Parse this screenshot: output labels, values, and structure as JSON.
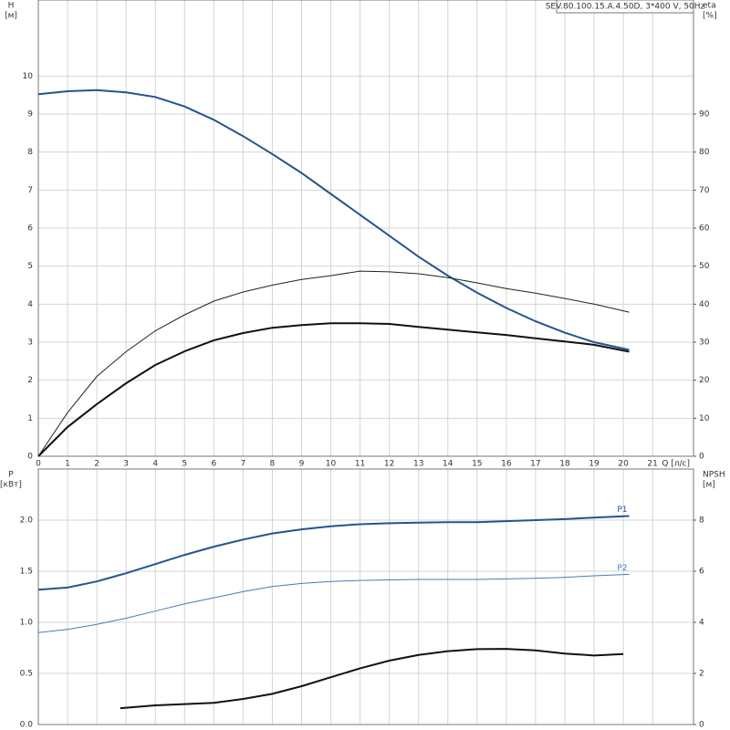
{
  "chart_data": [
    {
      "type": "line",
      "title": "SEV.80.100.15.A.4.50D, 3*400 V, 50Hz",
      "y_label": "H",
      "y_unit": "[м]",
      "y2_label": "eta",
      "y2_unit": "[%]",
      "x_label": "Q [л/с]",
      "xlim": [
        0,
        22.4
      ],
      "xticks": [
        0,
        1,
        2,
        3,
        4,
        5,
        6,
        7,
        8,
        9,
        10,
        11,
        12,
        13,
        14,
        15,
        16,
        17,
        18,
        19,
        20,
        21
      ],
      "show_xtick_labels": true,
      "ylim": [
        0,
        12
      ],
      "yticks": [
        0,
        1,
        2,
        3,
        4,
        5,
        6,
        7,
        8,
        9,
        10
      ],
      "y2lim": [
        0,
        120
      ],
      "y2ticks": [
        0,
        10,
        20,
        30,
        40,
        50,
        60,
        70,
        80,
        90
      ],
      "grid": true,
      "series": [
        {
          "color": "#24548f",
          "width": 2,
          "x": [
            0,
            1,
            2,
            3,
            4,
            5,
            6,
            7,
            8,
            9,
            10,
            11,
            12,
            13,
            14,
            15,
            16,
            17,
            18,
            19,
            20.2
          ],
          "values": [
            9.52,
            9.6,
            9.63,
            9.57,
            9.45,
            9.2,
            8.85,
            8.42,
            7.95,
            7.45,
            6.9,
            6.35,
            5.8,
            5.25,
            4.75,
            4.3,
            3.9,
            3.55,
            3.25,
            3.0,
            2.8
          ]
        },
        {
          "color": "#222222",
          "width": 1,
          "axis": "y2",
          "x": [
            0,
            1,
            2,
            3,
            4,
            5,
            6,
            7,
            8,
            9,
            10,
            11,
            12,
            13,
            14,
            15,
            16,
            17,
            18,
            19,
            20.2
          ],
          "values": [
            0,
            11.5,
            21,
            27.5,
            33,
            37.2,
            40.8,
            43.2,
            45,
            46.5,
            47.5,
            48.7,
            48.5,
            48,
            47,
            45.6,
            44.1,
            42.9,
            41.5,
            40,
            37.9
          ]
        },
        {
          "color": "#111111",
          "width": 2,
          "axis": "y2",
          "x": [
            0,
            1,
            2,
            3,
            4,
            5,
            6,
            7,
            8,
            9,
            10,
            11,
            12,
            13,
            14,
            15,
            16,
            17,
            18,
            19,
            20.2
          ],
          "values": [
            0,
            7.7,
            13.7,
            19.2,
            24,
            27.6,
            30.5,
            32.4,
            33.8,
            34.5,
            35,
            35,
            34.8,
            34,
            33.3,
            32.6,
            31.9,
            31,
            30.2,
            29.3,
            27.5
          ]
        }
      ]
    },
    {
      "type": "line",
      "y_label": "P",
      "y_unit": "[кВт]",
      "y2_label": "NPSH",
      "y2_unit": "[м]",
      "xlim": [
        0,
        22.4
      ],
      "xticks": [
        0,
        1,
        2,
        3,
        4,
        5,
        6,
        7,
        8,
        9,
        10,
        11,
        12,
        13,
        14,
        15,
        16,
        17,
        18,
        19,
        20,
        21
      ],
      "show_xtick_labels": false,
      "ylim": [
        0,
        2.5
      ],
      "yticks": [
        {
          "value": 0,
          "label": "0.0"
        },
        0.5,
        {
          "value": 1,
          "label": "1.0"
        },
        1.5,
        {
          "value": 2,
          "label": "2.0"
        }
      ],
      "y2lim": [
        0,
        10
      ],
      "y2ticks": [
        0,
        2,
        4,
        6,
        8
      ],
      "grid": true,
      "series": [
        {
          "name": "P1",
          "color": "#24548f",
          "width": 2,
          "x": [
            0,
            1,
            2,
            3,
            4,
            5,
            6,
            7,
            8,
            9,
            10,
            11,
            12,
            13,
            14,
            15,
            16,
            17,
            18,
            19,
            20.2
          ],
          "values": [
            1.32,
            1.34,
            1.4,
            1.48,
            1.57,
            1.66,
            1.74,
            1.81,
            1.87,
            1.91,
            1.94,
            1.96,
            1.97,
            1.975,
            1.98,
            1.98,
            1.99,
            2.0,
            2.01,
            2.025,
            2.04
          ]
        },
        {
          "name": "P2",
          "color": "#4a7ab3",
          "width": 1,
          "x": [
            0,
            1,
            2,
            3,
            4,
            5,
            6,
            7,
            8,
            9,
            10,
            11,
            12,
            13,
            14,
            15,
            16,
            17,
            18,
            19,
            20.2
          ],
          "values": [
            0.9,
            0.93,
            0.98,
            1.04,
            1.11,
            1.18,
            1.24,
            1.3,
            1.35,
            1.38,
            1.4,
            1.41,
            1.415,
            1.42,
            1.42,
            1.42,
            1.425,
            1.43,
            1.44,
            1.455,
            1.47
          ]
        },
        {
          "color": "#111111",
          "width": 2,
          "axis": "y2",
          "x": [
            2.8,
            4,
            5,
            6,
            7,
            8,
            9,
            10,
            11,
            12,
            13,
            14,
            15,
            16,
            17,
            18,
            19,
            20
          ],
          "values": [
            0.64,
            0.75,
            0.8,
            0.85,
            1.0,
            1.2,
            1.5,
            1.85,
            2.2,
            2.5,
            2.72,
            2.87,
            2.95,
            2.96,
            2.9,
            2.78,
            2.7,
            2.76
          ]
        }
      ]
    }
  ]
}
